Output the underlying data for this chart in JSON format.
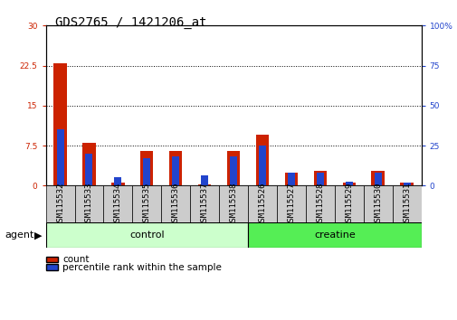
{
  "title": "GDS2765 / 1421206_at",
  "samples": [
    "GSM115532",
    "GSM115533",
    "GSM115534",
    "GSM115535",
    "GSM115536",
    "GSM115537",
    "GSM115538",
    "GSM115526",
    "GSM115527",
    "GSM115528",
    "GSM115529",
    "GSM115530",
    "GSM115531"
  ],
  "counts": [
    23.0,
    8.0,
    0.5,
    6.5,
    6.5,
    0.3,
    6.5,
    9.5,
    2.5,
    2.8,
    0.5,
    2.8,
    0.5
  ],
  "percentiles": [
    35.0,
    20.0,
    5.0,
    17.0,
    18.0,
    6.5,
    18.0,
    25.0,
    8.0,
    8.0,
    2.5,
    8.0,
    2.0
  ],
  "control_count": 7,
  "creatine_count": 6,
  "control_label": "control",
  "creatine_label": "creatine",
  "agent_label": "agent",
  "legend_count": "count",
  "legend_pct": "percentile rank within the sample",
  "ylim_left": [
    0,
    30
  ],
  "ylim_right": [
    0,
    100
  ],
  "yticks_left": [
    0,
    7.5,
    15,
    22.5,
    30
  ],
  "yticks_right": [
    0,
    25,
    50,
    75,
    100
  ],
  "ytick_labels_left": [
    "0",
    "7.5",
    "15",
    "22.5",
    "30"
  ],
  "ytick_labels_right": [
    "0",
    "25",
    "50",
    "75",
    "100%"
  ],
  "bar_color_count": "#cc2200",
  "bar_color_pct": "#2244cc",
  "control_bg": "#ccffcc",
  "creatine_bg": "#55ee55",
  "xlabel_bg": "#cccccc",
  "plot_bg": "#ffffff",
  "bar_width": 0.45,
  "pct_bar_width": 0.25,
  "title_fontsize": 10,
  "tick_fontsize": 6.5,
  "label_fontsize": 8,
  "small_fontsize": 7.5
}
